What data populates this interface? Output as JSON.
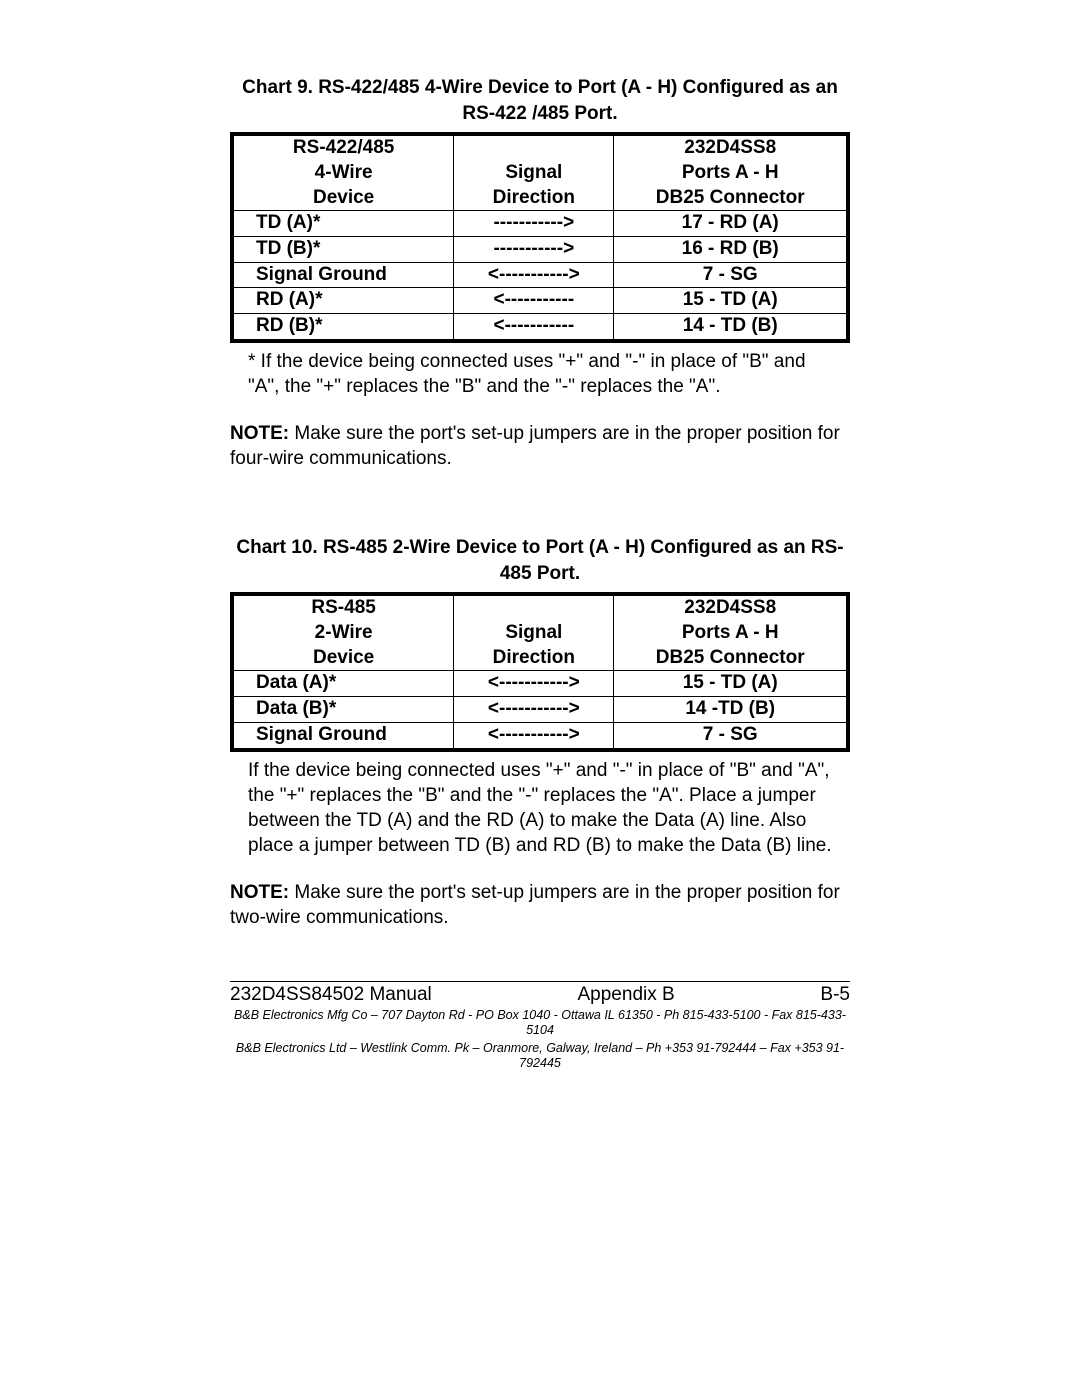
{
  "chart9": {
    "title": "Chart 9.  RS-422/485 4-Wire Device to Port (A - H) Configured as an RS-422 /485 Port.",
    "header": {
      "col1": [
        "RS-422/485",
        "4-Wire",
        "Device"
      ],
      "col2": [
        "",
        "Signal",
        "Direction"
      ],
      "col3": [
        "232D4SS8",
        "Ports A - H",
        "DB25 Connector"
      ]
    },
    "rows": [
      {
        "a": "TD (A)*",
        "b": "----------->",
        "c": "17 - RD (A)"
      },
      {
        "a": "TD (B)*",
        "b": "----------->",
        "c": "16 - RD (B)"
      },
      {
        "a": "Signal Ground",
        "b": "<----------->",
        "c": "7 - SG"
      },
      {
        "a": "RD (A)*",
        "b": "<-----------",
        "c": "15 - TD (A)"
      },
      {
        "a": "RD (B)*",
        "b": "<-----------",
        "c": "14 - TD (B)"
      }
    ],
    "footnote": "* If the device being connected uses \"+\" and \"-\" in place of \"B\" and \"A\", the \"+\" replaces the \"B\" and the \"-\" replaces the \"A\".",
    "note_label": "NOTE:",
    "note_text": "Make sure the port's set-up jumpers are in the proper position for four-wire communications."
  },
  "chart10": {
    "title": "Chart 10.  RS-485 2-Wire Device to Port (A - H) Configured as an RS-485 Port.",
    "header": {
      "col1": [
        "RS-485",
        "2-Wire",
        "Device"
      ],
      "col2": [
        "",
        "Signal",
        "Direction"
      ],
      "col3": [
        "232D4SS8",
        "Ports A - H",
        "DB25 Connector"
      ]
    },
    "rows": [
      {
        "a": "Data (A)*",
        "b": "<----------->",
        "c": "15 - TD (A)"
      },
      {
        "a": "Data (B)*",
        "b": "<----------->",
        "c": "14 -TD (B)"
      },
      {
        "a": "Signal Ground",
        "b": "<----------->",
        "c": "7 - SG"
      }
    ],
    "footnote": "If the device being connected uses \"+\" and \"-\" in place of \"B\" and \"A\", the \"+\" replaces the \"B\" and the \"-\" replaces the \"A\". Place a jumper between the TD (A) and the RD (A) to make the Data (A) line. Also place a jumper between TD (B) and RD (B) to make the Data (B) line.",
    "note_label": "NOTE:",
    "note_text": "Make sure the port's set-up jumpers are in the proper position for two-wire communications."
  },
  "footer": {
    "left": "232D4SS84502 Manual",
    "center": "Appendix B",
    "right": "B-5",
    "line1": "B&B Electronics Mfg Co – 707 Dayton Rd - PO Box 1040 - Ottawa IL 61350 - Ph 815-433-5100 - Fax 815-433-5104",
    "line2": "B&B Electronics Ltd – Westlink Comm. Pk – Oranmore, Galway, Ireland – Ph +353 91-792444 – Fax  +353 91-792445"
  },
  "style": {
    "font_family": "Arial",
    "title_fontsize": 19,
    "cell_fontsize": 19,
    "footnote_fontsize": 19,
    "footer_fontsize": 19,
    "footer_small_fontsize": 12.5,
    "border_color": "#000000",
    "outer_border_width": 4,
    "inner_border_width": 1,
    "background_color": "#ffffff",
    "text_color": "#000000"
  }
}
